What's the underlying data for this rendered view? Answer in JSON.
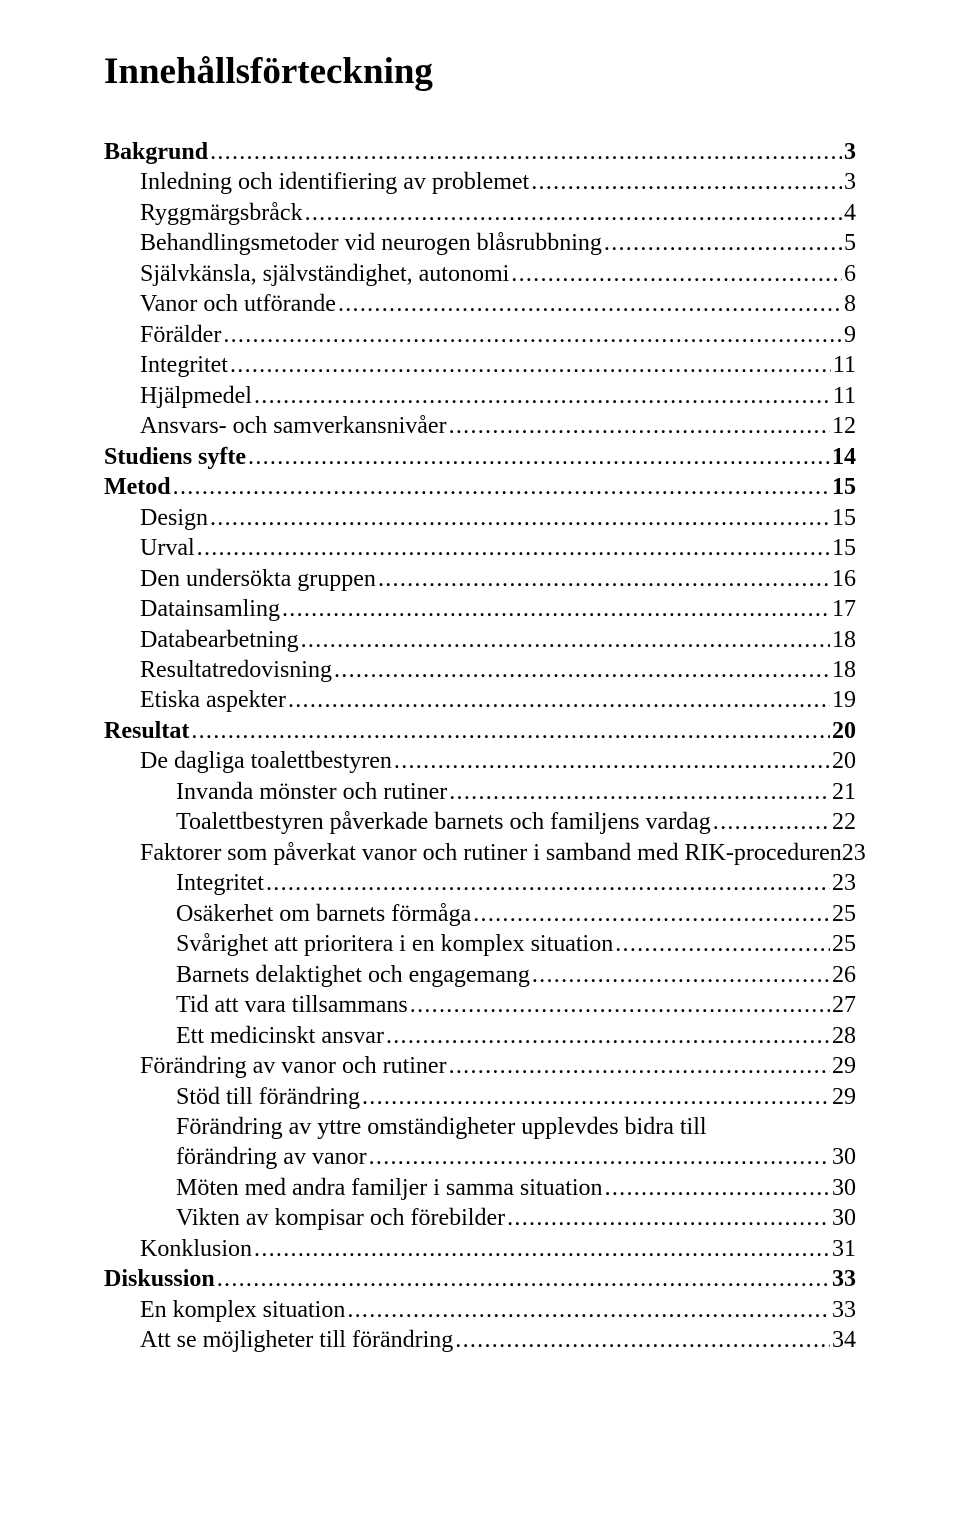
{
  "title": "Innehållsförteckning",
  "entries": [
    {
      "label": "Bakgrund",
      "page": "3",
      "indent": 0,
      "bold": true
    },
    {
      "label": "Inledning och identifiering av problemet",
      "page": "3",
      "indent": 1,
      "bold": false
    },
    {
      "label": "Ryggmärgsbråck",
      "page": "4",
      "indent": 1,
      "bold": false
    },
    {
      "label": "Behandlingsmetoder vid neurogen blåsrubbning",
      "page": "5",
      "indent": 1,
      "bold": false
    },
    {
      "label": "Självkänsla, självständighet, autonomi",
      "page": "6",
      "indent": 1,
      "bold": false
    },
    {
      "label": "Vanor och utförande",
      "page": "8",
      "indent": 1,
      "bold": false
    },
    {
      "label": "Förälder",
      "page": "9",
      "indent": 1,
      "bold": false
    },
    {
      "label": "Integritet",
      "page": "11",
      "indent": 1,
      "bold": false
    },
    {
      "label": "Hjälpmedel",
      "page": "11",
      "indent": 1,
      "bold": false
    },
    {
      "label": "Ansvars- och samverkansnivåer",
      "page": "12",
      "indent": 1,
      "bold": false
    },
    {
      "label": "Studiens syfte",
      "page": "14",
      "indent": 0,
      "bold": true
    },
    {
      "label": "Metod",
      "page": "15",
      "indent": 0,
      "bold": true
    },
    {
      "label": "Design",
      "page": "15",
      "indent": 1,
      "bold": false
    },
    {
      "label": "Urval",
      "page": "15",
      "indent": 1,
      "bold": false
    },
    {
      "label": "Den undersökta gruppen",
      "page": "16",
      "indent": 1,
      "bold": false
    },
    {
      "label": "Datainsamling",
      "page": "17",
      "indent": 1,
      "bold": false
    },
    {
      "label": "Databearbetning",
      "page": "18",
      "indent": 1,
      "bold": false
    },
    {
      "label": "Resultatredovisning",
      "page": "18",
      "indent": 1,
      "bold": false
    },
    {
      "label": "Etiska aspekter",
      "page": "19",
      "indent": 1,
      "bold": false
    },
    {
      "label": "Resultat",
      "page": "20",
      "indent": 0,
      "bold": true
    },
    {
      "label": "De dagliga toalettbestyren",
      "page": "20",
      "indent": 1,
      "bold": false
    },
    {
      "label": "Invanda mönster och rutiner",
      "page": "21",
      "indent": 2,
      "bold": false
    },
    {
      "label": "Toalettbestyren påverkade barnets och familjens vardag",
      "page": "22",
      "indent": 2,
      "bold": false
    },
    {
      "label": "Faktorer som påverkat vanor och rutiner i samband med RIK-proceduren",
      "page": "23",
      "indent": 1,
      "bold": false,
      "nogap": true
    },
    {
      "label": "Integritet",
      "page": "23",
      "indent": 2,
      "bold": false
    },
    {
      "label": "Osäkerhet om barnets förmåga",
      "page": "25",
      "indent": 2,
      "bold": false
    },
    {
      "label": "Svårighet att prioritera i en komplex situation",
      "page": "25",
      "indent": 2,
      "bold": false
    },
    {
      "label": "Barnets delaktighet och engagemang",
      "page": "26",
      "indent": 2,
      "bold": false
    },
    {
      "label": "Tid att vara tillsammans",
      "page": "27",
      "indent": 2,
      "bold": false
    },
    {
      "label": "Ett medicinskt ansvar",
      "page": "28",
      "indent": 2,
      "bold": false
    },
    {
      "label": "Förändring av vanor och rutiner",
      "page": "29",
      "indent": 1,
      "bold": false
    },
    {
      "label": "Stöd till förändring",
      "page": "29",
      "indent": 2,
      "bold": false
    },
    {
      "label_line1": "Förändring av yttre omständigheter upplevdes bidra till",
      "label_line2": "förändring av vanor",
      "page": "30",
      "indent": 2,
      "bold": false,
      "wrap": true
    },
    {
      "label": "Möten med andra familjer i samma situation",
      "page": "30",
      "indent": 2,
      "bold": false
    },
    {
      "label": "Vikten av kompisar och förebilder",
      "page": "30",
      "indent": 2,
      "bold": false
    },
    {
      "label": "Konklusion",
      "page": "31",
      "indent": 1,
      "bold": false
    },
    {
      "label": "Diskussion",
      "page": "33",
      "indent": 0,
      "bold": true
    },
    {
      "label": "En komplex situation",
      "page": "33",
      "indent": 1,
      "bold": false
    },
    {
      "label": "Att se möjligheter till förändring",
      "page": "34",
      "indent": 1,
      "bold": false
    }
  ]
}
